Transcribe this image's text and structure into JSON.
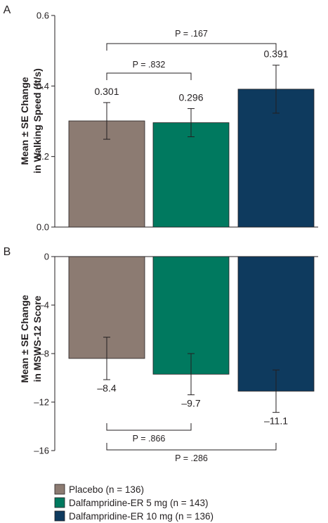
{
  "chart_data": [
    {
      "type": "bar",
      "panel_label": "A",
      "ylabel_lines": [
        "Mean ± SE Change",
        "in Walking Speed (ft/s)"
      ],
      "ylim": [
        0,
        0.6
      ],
      "yticks": [
        0.0,
        0.2,
        0.4,
        0.6
      ],
      "ytick_labels": [
        "0.0",
        "0.2",
        "0.4",
        "0.6"
      ],
      "categories": [
        "Placebo",
        "Dalfampridine-ER 5 mg",
        "Dalfampridine-ER 10 mg"
      ],
      "values": [
        0.301,
        0.296,
        0.391
      ],
      "value_labels": [
        "0.301",
        "0.296",
        "0.391"
      ],
      "errors": [
        0.052,
        0.04,
        0.068
      ],
      "comparisons": [
        {
          "from": 0,
          "to": 1,
          "label": "P = .832"
        },
        {
          "from": 0,
          "to": 2,
          "label": "P = .167"
        }
      ]
    },
    {
      "type": "bar",
      "panel_label": "B",
      "ylabel_lines": [
        "Mean ± SE Change",
        "in MSWS-12 Score"
      ],
      "ylim": [
        -16,
        0
      ],
      "yticks": [
        0,
        -4,
        -8,
        -12,
        -16
      ],
      "ytick_labels": [
        "0",
        "–4",
        "–8",
        "–12",
        "–16"
      ],
      "categories": [
        "Placebo",
        "Dalfampridine-ER 5 mg",
        "Dalfampridine-ER 10 mg"
      ],
      "values": [
        -8.4,
        -9.7,
        -11.1
      ],
      "value_labels": [
        "–8.4",
        "–9.7",
        "–11.1"
      ],
      "errors": [
        1.75,
        1.7,
        1.75
      ],
      "comparisons": [
        {
          "from": 0,
          "to": 1,
          "label": "P = .866"
        },
        {
          "from": 0,
          "to": 2,
          "label": "P = .286"
        }
      ]
    }
  ],
  "legend": [
    {
      "label": "Placebo (n = 136)",
      "color": "#8c7b72"
    },
    {
      "label": "Dalfampridine-ER 5 mg (n = 143)",
      "color": "#00795f"
    },
    {
      "label": "Dalfampridine-ER 10 mg (n = 136)",
      "color": "#0e3a5e"
    }
  ],
  "colors": [
    "#8c7b72",
    "#00795f",
    "#0e3a5e"
  ]
}
